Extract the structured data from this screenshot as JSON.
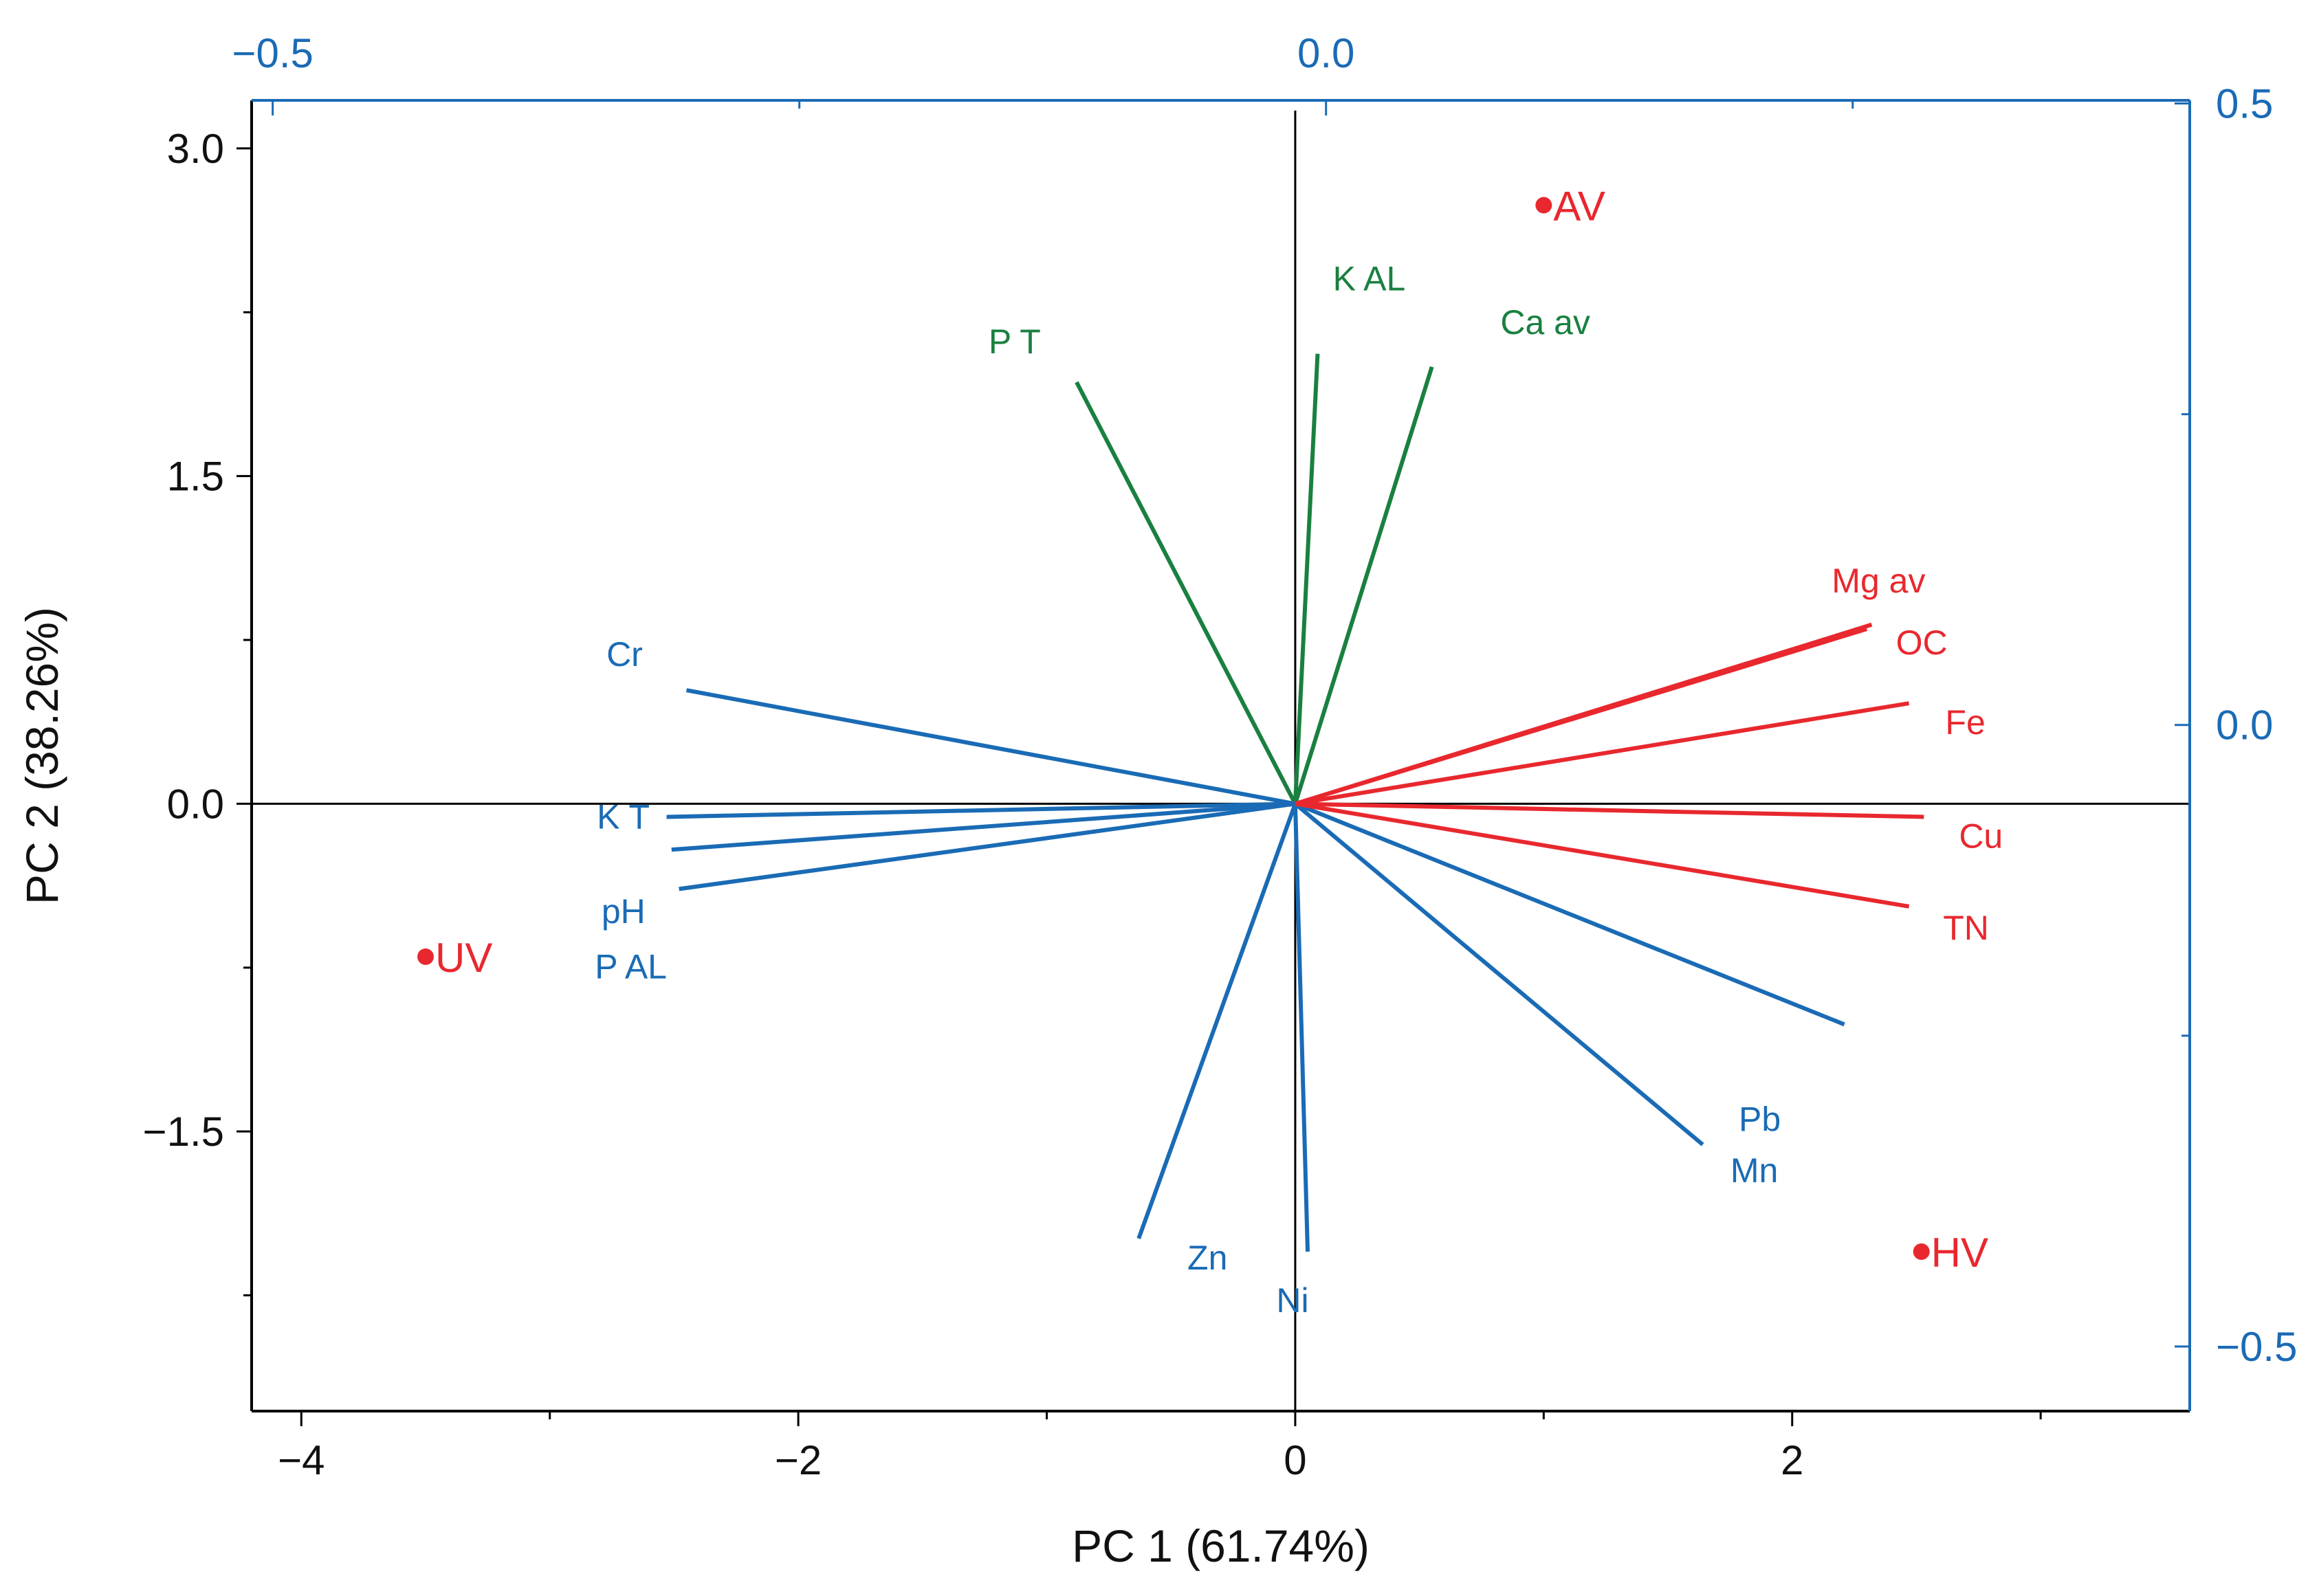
{
  "chart_data": {
    "type": "scatter",
    "subtype": "pca-biplot",
    "xlabel": "PC 1 (61.74%)",
    "ylabel": "PC 2 (38.26%)",
    "xlim": [
      -4.2,
      3.6
    ],
    "ylim": [
      -2.78,
      3.22
    ],
    "xticks": [
      -4,
      -2,
      0,
      2
    ],
    "xtick_labels": [
      "−4",
      "−2",
      "0",
      "2"
    ],
    "yticks": [
      3.0,
      1.5,
      0.0,
      -1.5
    ],
    "ytick_labels": [
      "3.0",
      "1.5",
      "0.0",
      "−1.5"
    ],
    "top_axis": {
      "range": [
        -0.51,
        0.41
      ],
      "ticks": [
        -0.5,
        0.0
      ],
      "tick_labels": [
        "−0.5",
        "0.0"
      ],
      "color": "#1a6bb5"
    },
    "right_axis": {
      "range": [
        -0.552,
        0.5025
      ],
      "ticks": [
        0.5,
        0.0,
        -0.5
      ],
      "tick_labels": [
        "0.5",
        "0.0",
        "−0.5"
      ],
      "color": "#1a6bb5"
    },
    "grid": false,
    "series": [
      {
        "name": "observations",
        "kind": "points",
        "color": "#e8282e",
        "points": [
          {
            "label": "AV",
            "x": 1.0,
            "y": 2.74
          },
          {
            "label": "UV",
            "x": -3.5,
            "y": -0.7
          },
          {
            "label": "HV",
            "x": 2.52,
            "y": -2.05
          }
        ]
      },
      {
        "name": "green loadings",
        "kind": "vectors",
        "color": "#1a8040",
        "vectors": [
          {
            "label": "P  T",
            "x": -0.88,
            "y": 1.93
          },
          {
            "label": "K  AL",
            "x": 0.09,
            "y": 2.06
          },
          {
            "label": "Ca av",
            "x": 0.55,
            "y": 2.0
          }
        ]
      },
      {
        "name": "blue loadings",
        "kind": "vectors",
        "color": "#1a6bb5",
        "vectors": [
          {
            "label": "Cr",
            "x": -2.45,
            "y": 0.52
          },
          {
            "label": "K T",
            "x": -2.53,
            "y": -0.06
          },
          {
            "label": "pH",
            "x": -2.51,
            "y": -0.21
          },
          {
            "label": "P AL",
            "x": -2.48,
            "y": -0.39
          },
          {
            "label": "Pb",
            "x": 2.21,
            "y": -1.01
          },
          {
            "label": "Mn",
            "x": 1.64,
            "y": -1.56
          },
          {
            "label": "Zn",
            "x": -0.63,
            "y": -1.99
          },
          {
            "label": "Ni",
            "x": 0.05,
            "y": -2.05
          }
        ]
      },
      {
        "name": "red loadings",
        "kind": "vectors",
        "color": "#e8282e",
        "vectors": [
          {
            "label": "Mg av",
            "x": 2.32,
            "y": 0.82
          },
          {
            "label": "OC",
            "x": 2.3,
            "y": 0.8
          },
          {
            "label": "Fe",
            "x": 2.47,
            "y": 0.46
          },
          {
            "label": "Cu",
            "x": 2.53,
            "y": -0.06
          },
          {
            "label": "TN",
            "x": 2.47,
            "y": -0.47
          }
        ]
      }
    ]
  }
}
